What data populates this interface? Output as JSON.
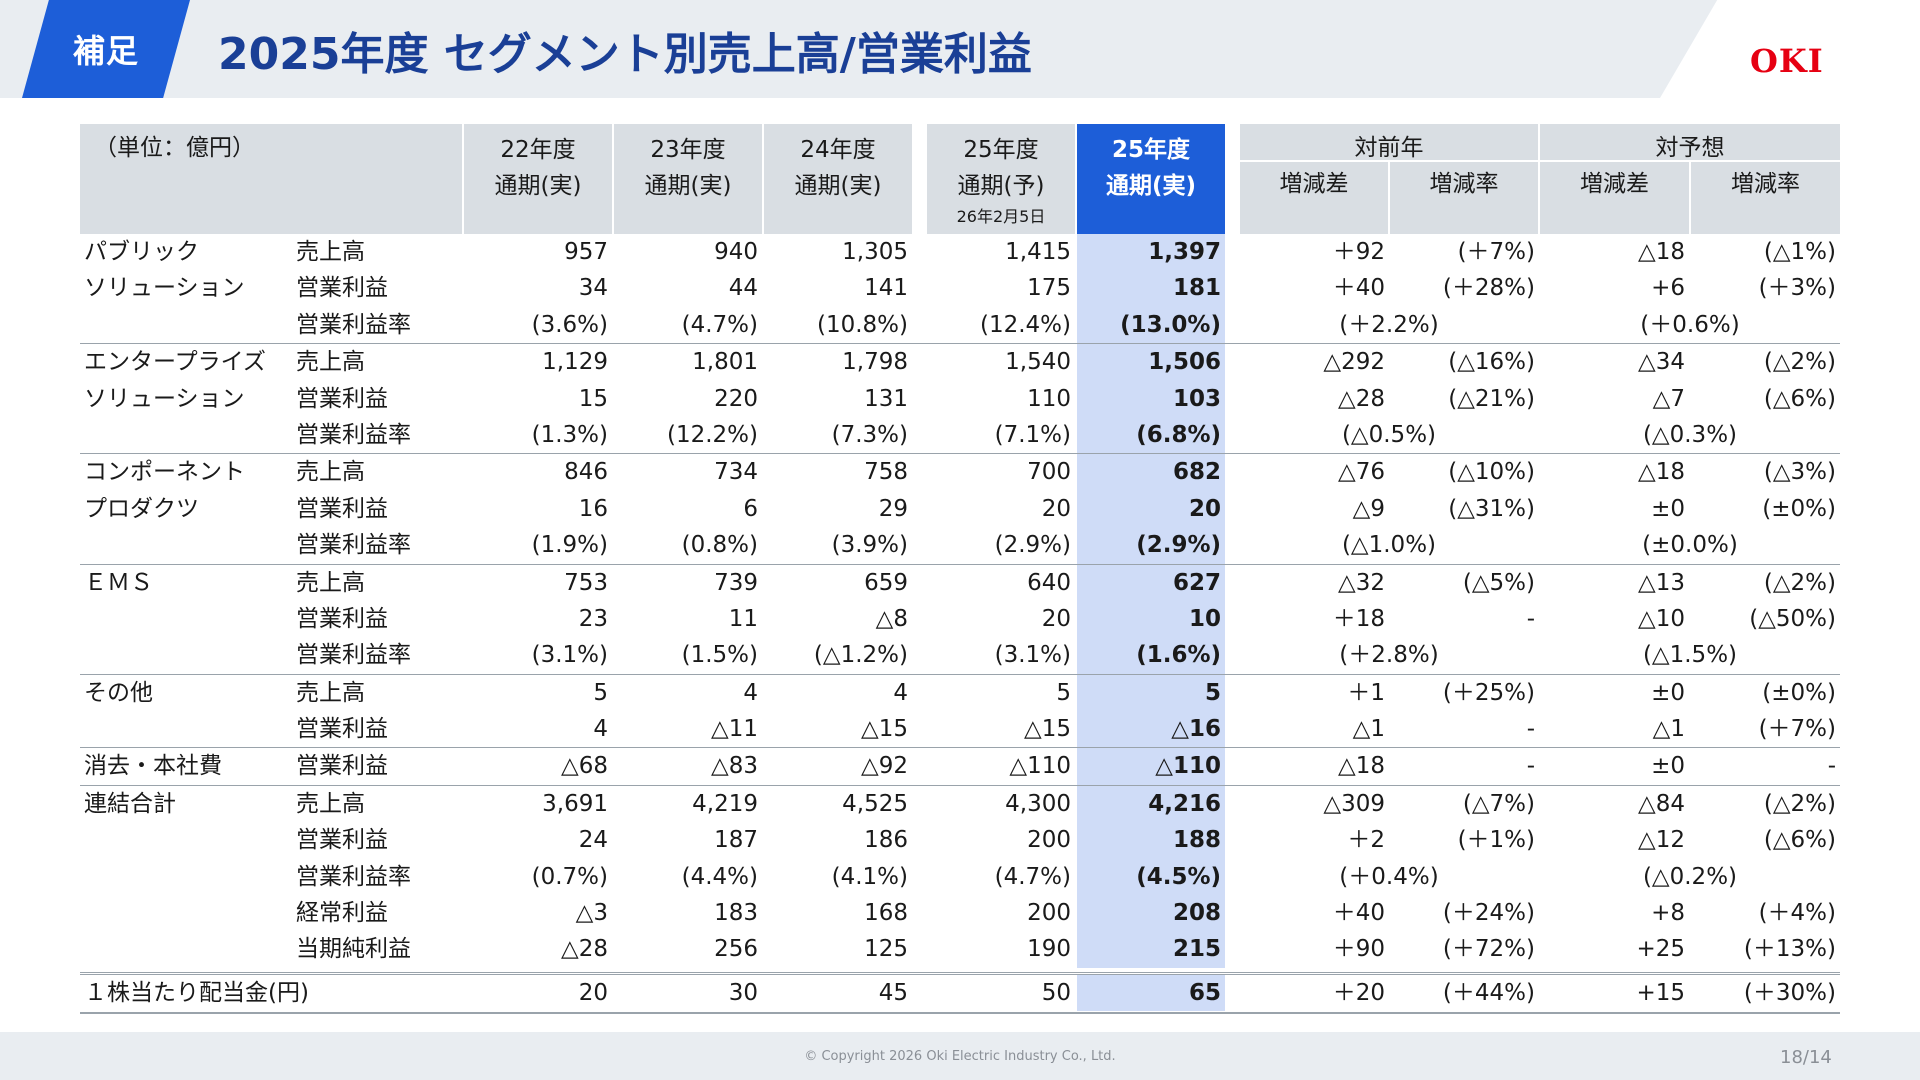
{
  "header": {
    "tag": "補足",
    "title": "2025年度 セグメント別売上高/営業利益",
    "logo": "OKI"
  },
  "table": {
    "unit": "（単位：億円）",
    "columns": [
      {
        "l1": "22年度",
        "l2": "通期(実)",
        "l3": ""
      },
      {
        "l1": "23年度",
        "l2": "通期(実)",
        "l3": ""
      },
      {
        "l1": "24年度",
        "l2": "通期(実)",
        "l3": ""
      },
      {
        "l1": "25年度",
        "l2": "通期(予)",
        "l3": "26年2月5日"
      },
      {
        "l1": "25年度",
        "l2": "通期(実)",
        "l3": ""
      }
    ],
    "group_yoy": "対前年",
    "group_fc": "対予想",
    "sub_diff": "増減差",
    "sub_rate": "増減率",
    "rows": [
      {
        "seg": "パブリック",
        "met": "売上高",
        "v": [
          "957",
          "940",
          "1,305",
          "1,415",
          "1,397"
        ],
        "yd": "＋92",
        "yr": "(＋7%)",
        "fd": "△18",
        "fr": "(△1%)"
      },
      {
        "seg": "ソリューション",
        "met": "営業利益",
        "v": [
          "34",
          "44",
          "141",
          "175",
          "181"
        ],
        "yd": "＋40",
        "yr": "(＋28%)",
        "fd": "+6",
        "fr": "(＋3%)"
      },
      {
        "seg": "",
        "met": "営業利益率",
        "v": [
          "(3.6%)",
          "(4.7%)",
          "(10.8%)",
          "(12.4%)",
          "(13.0%)"
        ],
        "ym": "(＋2.2%)",
        "fm": "(＋0.6%)"
      },
      {
        "seg": "エンタープライズ",
        "met": "売上高",
        "v": [
          "1,129",
          "1,801",
          "1,798",
          "1,540",
          "1,506"
        ],
        "yd": "△292",
        "yr": "(△16%)",
        "fd": "△34",
        "fr": "(△2%)",
        "sep": true
      },
      {
        "seg": "ソリューション",
        "met": "営業利益",
        "v": [
          "15",
          "220",
          "131",
          "110",
          "103"
        ],
        "yd": "△28",
        "yr": "(△21%)",
        "fd": "△7",
        "fr": "(△6%)"
      },
      {
        "seg": "",
        "met": "営業利益率",
        "v": [
          "(1.3%)",
          "(12.2%)",
          "(7.3%)",
          "(7.1%)",
          "(6.8%)"
        ],
        "ym": "(△0.5%)",
        "fm": "(△0.3%)"
      },
      {
        "seg": "コンポーネント",
        "met": "売上高",
        "v": [
          "846",
          "734",
          "758",
          "700",
          "682"
        ],
        "yd": "△76",
        "yr": "(△10%)",
        "fd": "△18",
        "fr": "(△3%)",
        "sep": true
      },
      {
        "seg": "プロダクツ",
        "met": "営業利益",
        "v": [
          "16",
          "6",
          "29",
          "20",
          "20"
        ],
        "yd": "△9",
        "yr": "(△31%)",
        "fd": "±0",
        "fr": "(±0%)"
      },
      {
        "seg": "",
        "met": "営業利益率",
        "v": [
          "(1.9%)",
          "(0.8%)",
          "(3.9%)",
          "(2.9%)",
          "(2.9%)"
        ],
        "ym": "(△1.0%)",
        "fm": "(±0.0%)"
      },
      {
        "seg": "ＥＭＳ",
        "met": "売上高",
        "v": [
          "753",
          "739",
          "659",
          "640",
          "627"
        ],
        "yd": "△32",
        "yr": "(△5%)",
        "fd": "△13",
        "fr": "(△2%)",
        "sep": true
      },
      {
        "seg": "",
        "met": "営業利益",
        "v": [
          "23",
          "11",
          "△8",
          "20",
          "10"
        ],
        "yd": "＋18",
        "yr": "-",
        "fd": "△10",
        "fr": "(△50%)"
      },
      {
        "seg": "",
        "met": "営業利益率",
        "v": [
          "(3.1%)",
          "(1.5%)",
          "(△1.2%)",
          "(3.1%)",
          "(1.6%)"
        ],
        "ym": "(＋2.8%)",
        "fm": "(△1.5%)"
      },
      {
        "seg": "その他",
        "met": "売上高",
        "v": [
          "5",
          "4",
          "4",
          "5",
          "5"
        ],
        "yd": "＋1",
        "yr": "(＋25%)",
        "fd": "±0",
        "fr": "(±0%)",
        "sep": true
      },
      {
        "seg": "",
        "met": "営業利益",
        "v": [
          "4",
          "△11",
          "△15",
          "△15",
          "△16"
        ],
        "yd": "△1",
        "yr": "-",
        "fd": "△1",
        "fr": "(＋7%)"
      },
      {
        "seg": "消去・本社費",
        "met": "営業利益",
        "v": [
          "△68",
          "△83",
          "△92",
          "△110",
          "△110"
        ],
        "yd": "△18",
        "yr": "-",
        "fd": "±0",
        "fr": "-",
        "sep": true
      },
      {
        "seg": "連結合計",
        "met": "売上高",
        "v": [
          "3,691",
          "4,219",
          "4,525",
          "4,300",
          "4,216"
        ],
        "yd": "△309",
        "yr": "(△7%)",
        "fd": "△84",
        "fr": "(△2%)",
        "sep": true
      },
      {
        "seg": "",
        "met": "営業利益",
        "v": [
          "24",
          "187",
          "186",
          "200",
          "188"
        ],
        "yd": "＋2",
        "yr": "(＋1%)",
        "fd": "△12",
        "fr": "(△6%)"
      },
      {
        "seg": "",
        "met": "営業利益率",
        "v": [
          "(0.7%)",
          "(4.4%)",
          "(4.1%)",
          "(4.7%)",
          "(4.5%)"
        ],
        "ym": "(＋0.4%)",
        "fm": "(△0.2%)"
      },
      {
        "seg": "",
        "met": "経常利益",
        "v": [
          "△3",
          "183",
          "168",
          "200",
          "208"
        ],
        "yd": "＋40",
        "yr": "(＋24%)",
        "fd": "+8",
        "fr": "(＋4%)"
      },
      {
        "seg": "",
        "met": "当期純利益",
        "v": [
          "△28",
          "256",
          "125",
          "190",
          "215"
        ],
        "yd": "＋90",
        "yr": "(＋72%)",
        "fd": "+25",
        "fr": "(＋13%)"
      },
      {
        "seg": "１株当たり配当金(円)",
        "met": "",
        "v": [
          "20",
          "30",
          "45",
          "50",
          "65"
        ],
        "yd": "＋20",
        "yr": "(＋44%)",
        "fd": "+15",
        "fr": "(＋30%)",
        "dsep": true
      }
    ]
  },
  "footer": {
    "copyright": "© Copyright 2026 Oki Electric Industry Co., Ltd.",
    "page": "18/14"
  }
}
